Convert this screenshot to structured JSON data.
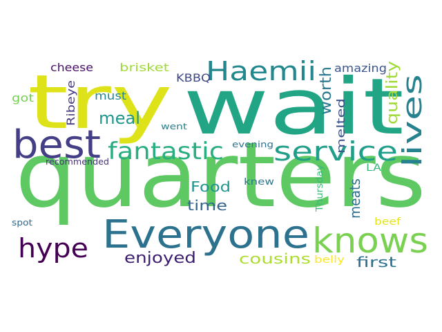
{
  "words": [
    {
      "text": "quarters",
      "color": "#5ec962"
    },
    {
      "text": "wait",
      "color": "#21a585"
    },
    {
      "text": "try",
      "color": "#dde318"
    },
    {
      "text": "Everyone",
      "color": "#2c728e"
    },
    {
      "text": "knows",
      "color": "#7ad151"
    },
    {
      "text": "best",
      "color": "#433e85"
    },
    {
      "text": "service",
      "color": "#1f9e89"
    },
    {
      "text": "Haemii",
      "color": "#23888e"
    },
    {
      "text": "fantastic",
      "color": "#29af7f"
    },
    {
      "text": "lives",
      "color": "#26828e"
    },
    {
      "text": "hype",
      "color": "#440154"
    },
    {
      "text": "quality",
      "color": "#a0da39"
    },
    {
      "text": "worth",
      "color": "#2a788e"
    },
    {
      "text": "meal",
      "color": "#1f968b"
    },
    {
      "text": "enjoyed",
      "color": "#3b1c6f"
    },
    {
      "text": "cousins",
      "color": "#addc30"
    },
    {
      "text": "first",
      "color": "#2d718e"
    },
    {
      "text": "Food",
      "color": "#1f948c"
    },
    {
      "text": "time",
      "color": "#32648e"
    },
    {
      "text": "meats",
      "color": "#2e6f8e"
    },
    {
      "text": "melted",
      "color": "#3b528b"
    },
    {
      "text": "cheese",
      "color": "#471063"
    },
    {
      "text": "brisket",
      "color": "#9fda3a"
    },
    {
      "text": "amazing",
      "color": "#3a548c"
    },
    {
      "text": "KBBQ",
      "color": "#3f4788"
    },
    {
      "text": "must",
      "color": "#24868e"
    },
    {
      "text": "Ribeye",
      "color": "#443a83"
    },
    {
      "text": "got",
      "color": "#75d054"
    },
    {
      "text": "went",
      "color": "#26828e"
    },
    {
      "text": "evening",
      "color": "#2c738e"
    },
    {
      "text": "recommended",
      "color": "#46327e"
    },
    {
      "text": "LA",
      "color": "#35b779"
    },
    {
      "text": "knew",
      "color": "#2a788e"
    },
    {
      "text": "Thursday",
      "color": "#3aba76"
    },
    {
      "text": "spot",
      "color": "#31688e"
    },
    {
      "text": "beef",
      "color": "#e5e419"
    },
    {
      "text": "belly",
      "color": "#fde725"
    }
  ]
}
